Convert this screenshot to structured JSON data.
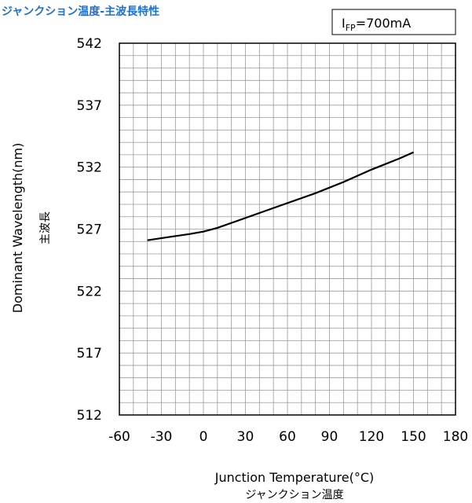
{
  "page_title": "ジャンクション温度-主波長特性",
  "chart_data": {
    "type": "line",
    "condition_label": {
      "main": "I",
      "sub": "FP",
      "rest": "=700mA"
    },
    "xlabel": "Junction Temperature(°C)",
    "xlabel_sub": "ジャンクション温度",
    "ylabel": "Dominant Wavelength(nm)",
    "ylabel_sub": "主波長",
    "xlim": [
      -60,
      180
    ],
    "ylim": [
      512,
      542
    ],
    "x_ticks": [
      -60,
      -30,
      0,
      30,
      60,
      90,
      120,
      150,
      180
    ],
    "y_ticks": [
      512,
      517,
      522,
      527,
      532,
      537,
      542
    ],
    "grid": true,
    "series": [
      {
        "x": [
          -40,
          -25,
          -10,
          0,
          10,
          25,
          40,
          60,
          80,
          100,
          120,
          140,
          150
        ],
        "y": [
          526.1,
          526.35,
          526.6,
          526.8,
          527.1,
          527.7,
          528.3,
          529.1,
          529.9,
          530.8,
          531.8,
          532.7,
          533.2
        ]
      }
    ]
  }
}
